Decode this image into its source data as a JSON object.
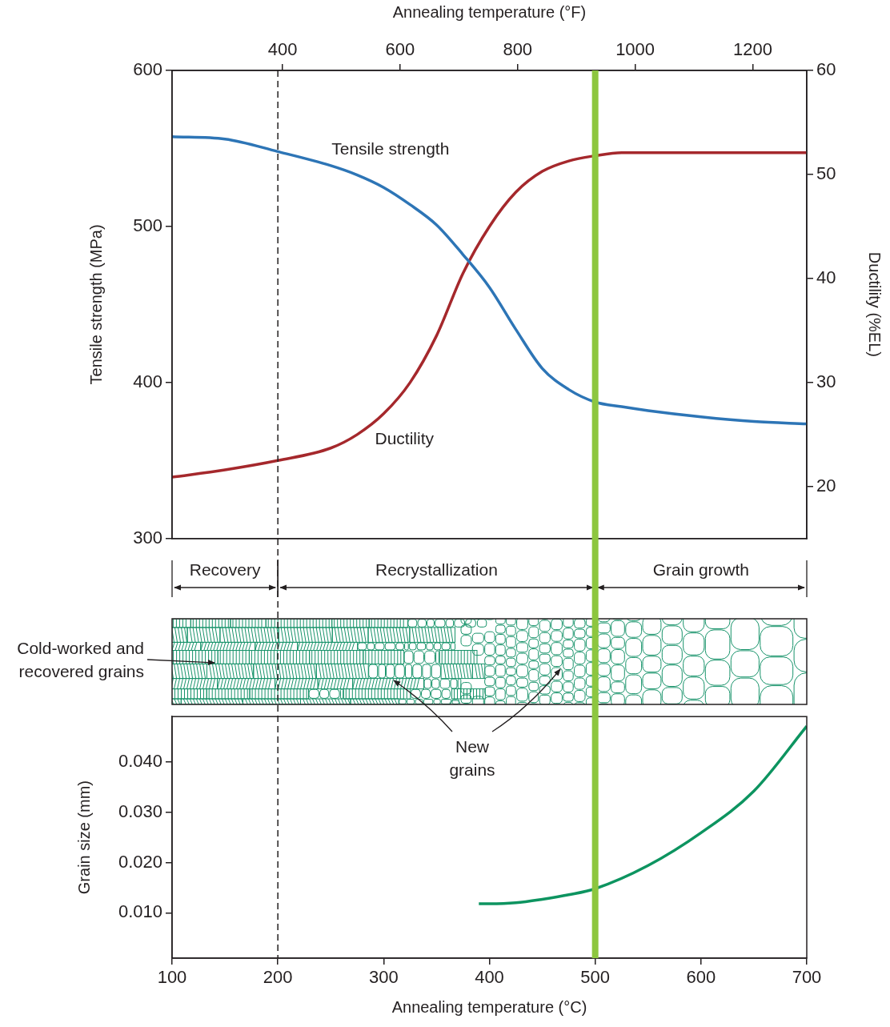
{
  "chart_data": [
    {
      "type": "line",
      "x2label": "Annealing temperature (°F)",
      "x2lim": [
        212,
        1292
      ],
      "x2ticks": [
        400,
        600,
        800,
        1000,
        1200
      ],
      "xlim": [
        100,
        700
      ],
      "ylabel": "Tensile strength (MPa)",
      "ylim": [
        300,
        600
      ],
      "yticks": [
        300,
        400,
        500,
        600
      ],
      "y2label": "Ductility (%EL)",
      "y2lim": [
        15,
        60
      ],
      "y2ticks": [
        20,
        30,
        40,
        50,
        60
      ],
      "grid": false,
      "x": [
        100,
        150,
        200,
        250,
        275,
        300,
        325,
        350,
        375,
        400,
        425,
        450,
        475,
        500,
        525,
        550,
        600,
        650,
        700
      ],
      "series": [
        {
          "name": "Tensile strength",
          "color": "#2d75b6",
          "values": [
            557.5,
            556,
            548,
            539,
            533,
            525,
            514,
            501,
            482,
            461,
            434,
            409,
            395.5,
            387.5,
            384.5,
            382,
            378,
            375,
            373.5
          ]
        },
        {
          "name": "Ductility",
          "color": "#a5282c",
          "axis": "y2",
          "values": [
            20.9,
            21.6,
            22.5,
            23.7,
            25.0,
            27.0,
            30.0,
            34.5,
            40.5,
            45.0,
            48.3,
            50.3,
            51.3,
            51.8,
            52.1,
            52.1,
            52.1,
            52.1,
            52.1
          ]
        }
      ]
    },
    {
      "type": "line",
      "xlabel": "Annealing temperature (°C)",
      "xlim": [
        100,
        700
      ],
      "xticks": [
        100,
        200,
        300,
        400,
        500,
        600,
        700
      ],
      "ylabel": "Grain size (mm)",
      "ylim": [
        0.001,
        0.049
      ],
      "yticks": [
        {
          "value": 0.01,
          "label": "0.010"
        },
        {
          "value": 0.02,
          "label": "0.020"
        },
        {
          "value": 0.03,
          "label": "0.030"
        },
        {
          "value": 0.04,
          "label": "0.040"
        }
      ],
      "grid": false,
      "x": [
        390,
        400,
        425,
        450,
        475,
        500,
        550,
        600,
        650,
        700
      ],
      "values": [
        0.0118,
        0.0118,
        0.012,
        0.0127,
        0.0136,
        0.0148,
        0.0194,
        0.0259,
        0.0342,
        0.0471
      ],
      "color": "#0d9460"
    }
  ],
  "stages": [
    {
      "label": "Recovery",
      "from": 100,
      "to": 200
    },
    {
      "label": "Recrystallization",
      "from": 200,
      "to": 500
    },
    {
      "label": "Grain growth",
      "from": 500,
      "to": 700
    }
  ],
  "markers": [
    {
      "x": 200,
      "line_style": "dashed",
      "color": "#231f20"
    },
    {
      "x": 500,
      "line_style": "solid",
      "color": "#8dc63f"
    }
  ],
  "annotations": [
    {
      "text": "Cold-worked and recovered grains"
    },
    {
      "text": "New grains"
    }
  ]
}
